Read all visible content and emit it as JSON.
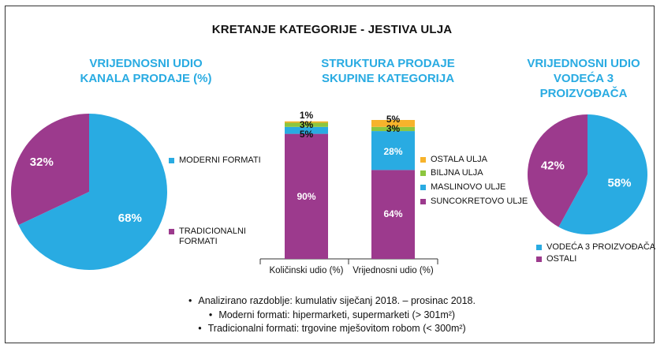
{
  "title": "KRETANJE KATEGORIJE - JESTIVA ULJA",
  "colors": {
    "accent": "#29abe2",
    "magenta": "#9c3a8d",
    "yellow": "#f7b32b",
    "green": "#8cc63f"
  },
  "chart_data": [
    {
      "type": "pie",
      "title": "VRIJEDNOSNI UDIO KANALA PRODAJE (%)",
      "title_lines": [
        "VRIJEDNOSNI UDIO",
        "KANALA PRODAJE (%)"
      ],
      "slices": [
        {
          "name": "MODERNI FORMATI",
          "value": 68,
          "label": "68%",
          "color": "#29abe2"
        },
        {
          "name": "TRADICIONALNI FORMATI",
          "value": 32,
          "label": "32%",
          "color": "#9c3a8d"
        }
      ],
      "legend": [
        "MODERNI FORMATI",
        "TRADICIONALNI FORMATI"
      ],
      "legend_lines": [
        [
          "MODERNI FORMATI"
        ],
        [
          "TRADICIONALNI",
          "FORMATI"
        ]
      ],
      "legend_position": "right"
    },
    {
      "type": "bar",
      "stacked": true,
      "title": "STRUKTURA PRODAJE SKUPINE KATEGORIJA",
      "title_lines": [
        "STRUKTURA PRODAJE",
        "SKUPINE KATEGORIJA"
      ],
      "categories": [
        "Količinski udio (%)",
        "Vrijednosni udio (%)"
      ],
      "series": [
        {
          "name": "SUNCOKRETOVO ULJE",
          "values": [
            90,
            64
          ],
          "labels": [
            "90%",
            "64%"
          ],
          "color": "#9c3a8d"
        },
        {
          "name": "MASLINOVO ULJE",
          "values": [
            5,
            28
          ],
          "labels": [
            "5%",
            "28%"
          ],
          "color": "#29abe2"
        },
        {
          "name": "BILJNA ULJA",
          "values": [
            3,
            3
          ],
          "labels": [
            "3%",
            "3%"
          ],
          "color": "#8cc63f"
        },
        {
          "name": "OSTALA ULJA",
          "values": [
            1,
            5
          ],
          "labels": [
            "1%",
            "5%"
          ],
          "color": "#f7b32b"
        }
      ],
      "legend": [
        "OSTALA ULJA",
        "BILJNA ULJA",
        "MASLINOVO ULJE",
        "SUNCOKRETOVO ULJE"
      ],
      "legend_position": "right",
      "ylim": [
        0,
        100
      ],
      "grid": false
    },
    {
      "type": "pie",
      "title": "VRIJEDNOSNI UDIO VODEĆA 3 PROIZVOĐAČA",
      "title_lines": [
        "VRIJEDNOSNI UDIO",
        "VODEĆA 3",
        "PROIZVOĐAČA"
      ],
      "slices": [
        {
          "name": "VODEĆA 3 PROIZVOĐAČA",
          "value": 58,
          "label": "58%",
          "color": "#29abe2"
        },
        {
          "name": "OSTALI",
          "value": 42,
          "label": "42%",
          "color": "#9c3a8d"
        }
      ],
      "legend": [
        "VODEĆA 3 PROIZVOĐAČA",
        "OSTALI"
      ],
      "legend_position": "bottom"
    }
  ],
  "notes": [
    "Analizirano razdoblje: kumulativ siječanj 2018. – prosinac 2018.",
    "Moderni formati: hipermarketi, supermarketi (> 301m²)",
    "Tradicionalni formati: trgovine mješovitom robom (< 300m²)"
  ]
}
